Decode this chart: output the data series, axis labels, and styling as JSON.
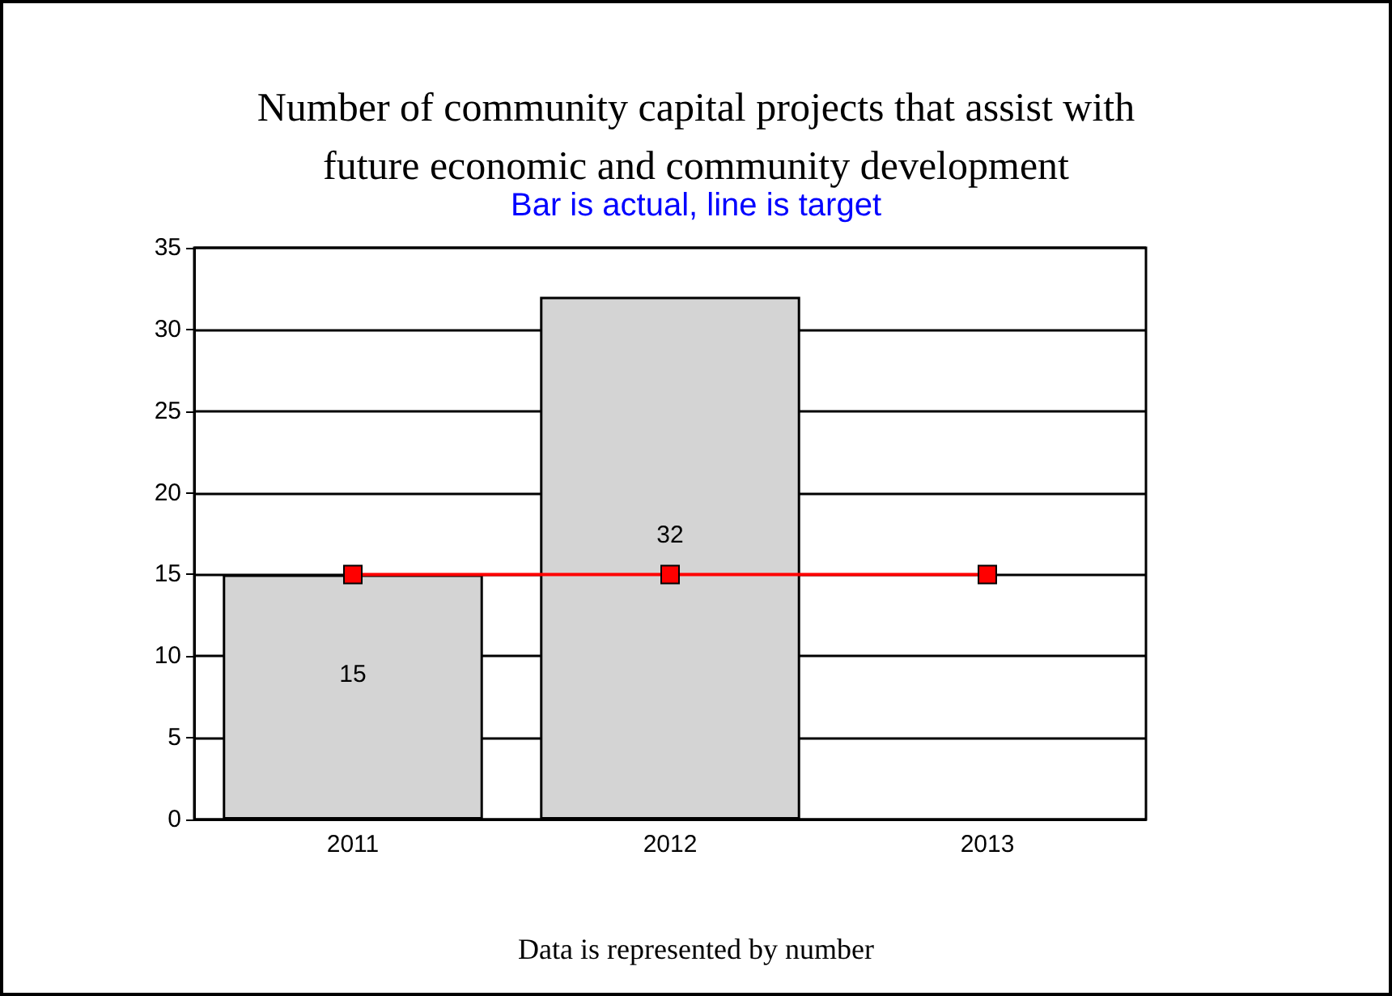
{
  "chart_data": {
    "type": "bar",
    "title": "Number of community capital projects that assist with\nfuture economic and community development",
    "subtitle": "Bar is actual, line is target",
    "categories": [
      "2011",
      "2012",
      "2013"
    ],
    "series": [
      {
        "color": "#d4d4d4",
        "values": [
          15,
          32,
          null
        ],
        "value_labels": [
          "15",
          "32",
          null
        ]
      },
      {
        "type": "line",
        "color": "#ff0000",
        "values": [
          15,
          15,
          15
        ],
        "marker": "square"
      }
    ],
    "ylim": [
      0,
      35
    ],
    "yticks": [
      0,
      5,
      10,
      15,
      20,
      25,
      30,
      35
    ],
    "grid": "y",
    "annotations": [
      "Data is represented by number"
    ]
  }
}
